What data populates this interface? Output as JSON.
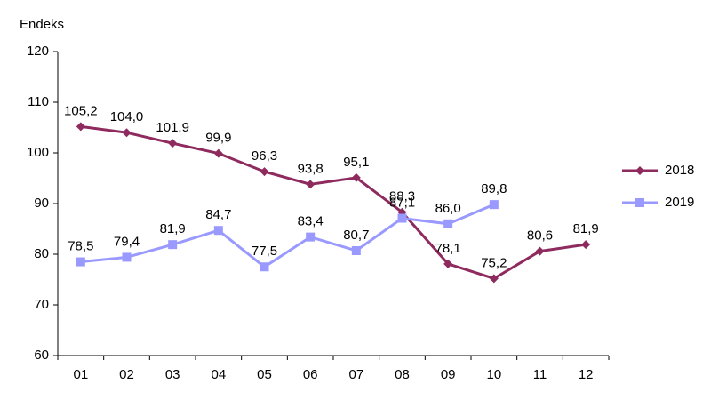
{
  "chart_data": {
    "type": "line",
    "y_label": "Endeks",
    "categories": [
      "01",
      "02",
      "03",
      "04",
      "05",
      "06",
      "07",
      "08",
      "09",
      "10",
      "11",
      "12"
    ],
    "series": [
      {
        "name": "2018",
        "color": "#8e2a5e",
        "marker": "diamond",
        "values": [
          105.2,
          104.0,
          101.9,
          99.9,
          96.3,
          93.8,
          95.1,
          88.3,
          78.1,
          75.2,
          80.6,
          81.9
        ],
        "value_labels": [
          "105,2",
          "104,0",
          "101,9",
          "99,9",
          "96,3",
          "93,8",
          "95,1",
          "88,3",
          "78,1",
          "75,2",
          "80,6",
          "81,9"
        ]
      },
      {
        "name": "2019",
        "color": "#9999ff",
        "marker": "square",
        "values": [
          78.5,
          79.4,
          81.9,
          84.7,
          77.5,
          83.4,
          80.7,
          87.1,
          86.0,
          89.8,
          null,
          null
        ],
        "value_labels": [
          "78,5",
          "79,4",
          "81,9",
          "84,7",
          "77,5",
          "83,4",
          "80,7",
          "87,1",
          "86,0",
          "89,8",
          null,
          null
        ]
      }
    ],
    "ylim": [
      60,
      120
    ],
    "yticks": [
      60,
      70,
      80,
      90,
      100,
      110,
      120
    ],
    "legend": "right"
  }
}
